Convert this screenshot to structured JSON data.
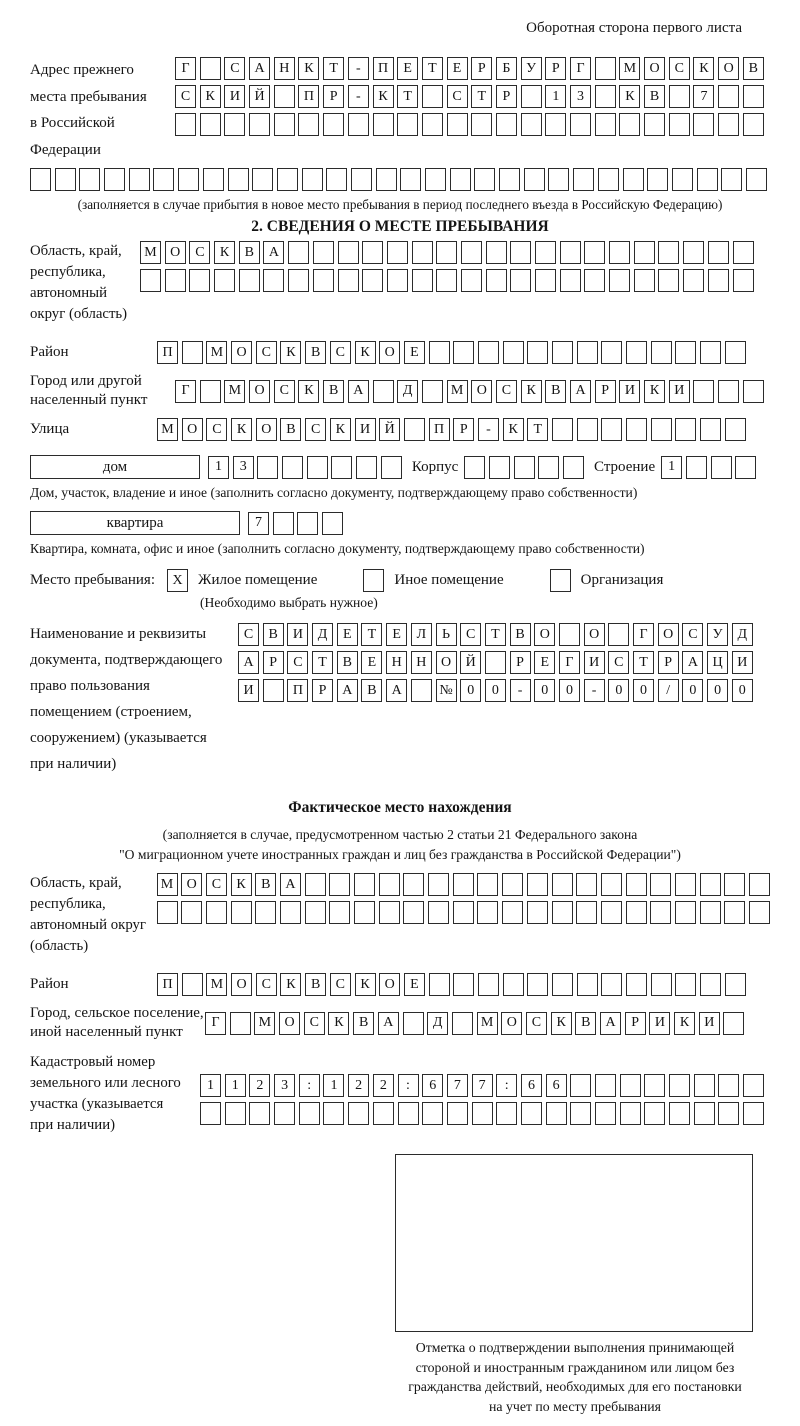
{
  "header": {
    "note": "Оборотная сторона первого листа"
  },
  "prev_address": {
    "label": "Адрес прежнего\nместа пребывания\nв Российской\nФедерации",
    "rows": [
      {
        "text": "Г САНКТ-ПЕТЕРБУРГ МОСКОВ",
        "count": 24
      },
      {
        "text": "СКИЙ ПР-КТ СТР 13 КВ 7",
        "count": 24
      },
      {
        "text": "",
        "count": 24
      },
      {
        "text": "",
        "count": 30
      }
    ],
    "note": "(заполняется в случае прибытия в новое место пребывания в период последнего въезда в Российскую Федерацию)"
  },
  "section2": {
    "title": "2. СВЕДЕНИЯ О МЕСТЕ ПРЕБЫВАНИЯ",
    "region": {
      "label": "Область, край,\nреспублика,\nавтономный\nокруг (область)",
      "rows": [
        {
          "text": "МОСКВА",
          "count": 25
        },
        {
          "text": "",
          "count": 25
        }
      ]
    },
    "district": {
      "label": "Район",
      "row": {
        "text": "П МОСКВСКОЕ",
        "count": 24
      }
    },
    "city": {
      "label": "Город или другой\nнаселенный пункт",
      "row": {
        "text": "Г МОСКВА Д МОСКВАРИКИ",
        "count": 24
      }
    },
    "street": {
      "label": "Улица",
      "row": {
        "text": "МОСКОВСКИЙ ПР-КТ",
        "count": 24
      }
    },
    "house_row": {
      "house_label": "дом",
      "house_cells": {
        "text": "13",
        "count": 8
      },
      "korpus_label": "Корпус",
      "korpus_cells": {
        "text": "",
        "count": 5
      },
      "stroenie_label": "Строение",
      "stroenie_cells": {
        "text": "1",
        "count": 4
      }
    },
    "house_note": "Дом, участок, владение и иное (заполнить согласно документу, подтверждающему право собственности)",
    "apartment_row": {
      "apt_label": "квартира",
      "apt_cells": {
        "text": "7",
        "count": 4
      }
    },
    "apartment_note": "Квартира, комната, офис и иное (заполнить согласно документу, подтверждающему право собственности)",
    "stay_type": {
      "label": "Место пребывания:",
      "options": [
        {
          "mark": "X",
          "label": "Жилое помещение"
        },
        {
          "mark": "",
          "label": "Иное помещение"
        },
        {
          "mark": "",
          "label": "Организация"
        }
      ],
      "note": "(Необходимо выбрать нужное)"
    },
    "doc": {
      "label": "Наименование и реквизиты\nдокумента, подтверждающего\nправо пользования\nпомещением (строением,\nсооружением) (указывается\nпри наличии)",
      "rows": [
        {
          "text": "СВИДЕТЕЛЬСТВО О ГОСУД",
          "count": 21
        },
        {
          "text": "АРСТВЕННОЙ РЕГИСТРАЦИ",
          "count": 21
        },
        {
          "text": "И ПРАВА №00-00-00/000",
          "count": 21
        }
      ]
    }
  },
  "actual_location": {
    "title": "Фактическое место нахождения",
    "note1": "(заполняется в случае, предусмотренном частью 2 статьи 21 Федерального закона",
    "note2": "\"О миграционном учете иностранных граждан и лиц без гражданства в Российской Федерации\")",
    "region": {
      "label": "Область, край,\nреспублика,\nавтономный округ\n(область)",
      "rows": [
        {
          "text": "МОСКВА",
          "count": 25
        },
        {
          "text": "",
          "count": 25
        }
      ]
    },
    "district": {
      "label": "Район",
      "row": {
        "text": "П МОСКВСКОЕ",
        "count": 24
      }
    },
    "city": {
      "label": "Город, сельское поселение,\nиной населенный пункт",
      "row": {
        "text": "Г МОСКВА Д МОСКВАРИКИ",
        "count": 22
      }
    },
    "cadastral": {
      "label": "Кадастровый номер\nземельного или лесного\nучастка (указывается\nпри наличии)",
      "rows": [
        {
          "text": "1123:122:677:66",
          "count": 23
        },
        {
          "text": "",
          "count": 23
        }
      ]
    }
  },
  "stamp": {
    "caption": "Отметка о подтверждении выполнения принимающей\nстороной и иностранным гражданином или лицом без\nгражданства действий, необходимых для его постановки\nна учет по месту пребывания"
  }
}
